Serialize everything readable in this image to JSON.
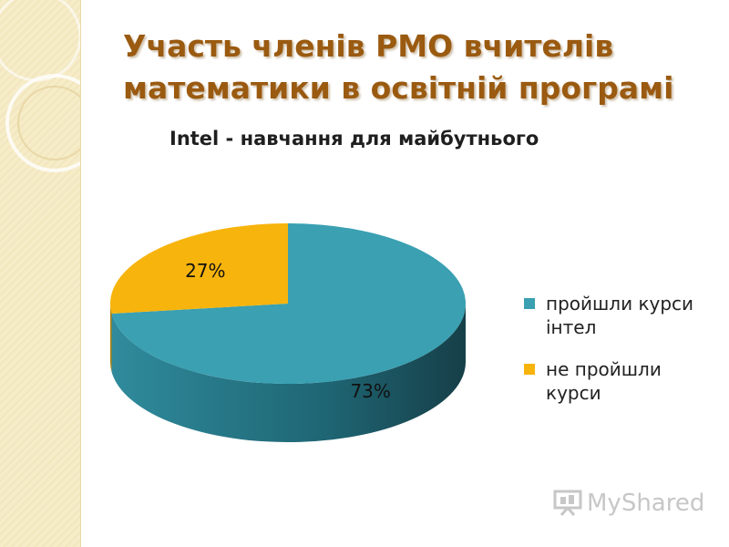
{
  "slide": {
    "title": "Участь членів РМО вчителів математики в освітній програмі",
    "subtitle": "Intel - навчання для майбутнього"
  },
  "watermark": {
    "text": "MyShared"
  },
  "colors": {
    "teal": "#3aa0b2",
    "gold": "#f7b40d",
    "title": "#9a5a10"
  },
  "chart_data": {
    "type": "pie",
    "style": "3d",
    "title": "",
    "labels": [
      "пройшли курси інтел",
      "не пройшли курси"
    ],
    "values": [
      73,
      27
    ],
    "data_labels": [
      "73%",
      "27%"
    ],
    "colors": [
      "#3aa0b2",
      "#f7b40d"
    ],
    "legend_position": "right"
  }
}
